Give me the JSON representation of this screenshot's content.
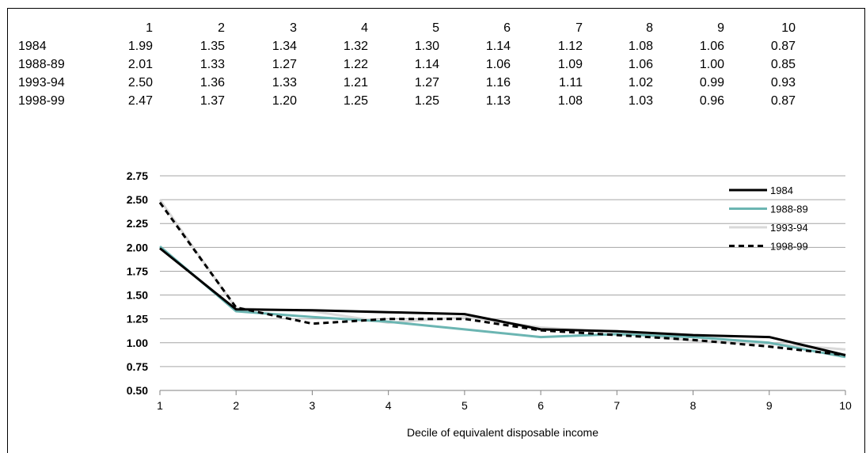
{
  "chart_data": {
    "type": "line",
    "x": [
      1,
      2,
      3,
      4,
      5,
      6,
      7,
      8,
      9,
      10
    ],
    "xlabel": "Decile of equivalent disposable income",
    "ylim": [
      0.5,
      2.75
    ],
    "yticks": [
      "0.50",
      "0.75",
      "1.00",
      "1.25",
      "1.50",
      "1.75",
      "2.00",
      "2.25",
      "2.50",
      "2.75"
    ],
    "grid": "horizontal",
    "legend": "top-right",
    "series": [
      {
        "name": "1984",
        "color": "#000000",
        "dash": "solid",
        "values": [
          1.99,
          1.35,
          1.34,
          1.32,
          1.3,
          1.14,
          1.12,
          1.08,
          1.06,
          0.87
        ],
        "labels": [
          "1.99",
          "1.35",
          "1.34",
          "1.32",
          "1.30",
          "1.14",
          "1.12",
          "1.08",
          "1.06",
          "0.87"
        ]
      },
      {
        "name": "1988-89",
        "color": "#6bb5b2",
        "dash": "solid",
        "values": [
          2.01,
          1.33,
          1.27,
          1.22,
          1.14,
          1.06,
          1.09,
          1.06,
          1.0,
          0.85
        ],
        "labels": [
          "2.01",
          "1.33",
          "1.27",
          "1.22",
          "1.14",
          "1.06",
          "1.09",
          "1.06",
          "1.00",
          "0.85"
        ]
      },
      {
        "name": "1993-94",
        "color": "#d9d9d9",
        "dash": "solid",
        "values": [
          2.5,
          1.36,
          1.33,
          1.21,
          1.27,
          1.16,
          1.11,
          1.02,
          0.99,
          0.93
        ],
        "labels": [
          "2.50",
          "1.36",
          "1.33",
          "1.21",
          "1.27",
          "1.16",
          "1.11",
          "1.02",
          "0.99",
          "0.93"
        ]
      },
      {
        "name": "1998-99",
        "color": "#000000",
        "dash": "dashed",
        "values": [
          2.47,
          1.37,
          1.2,
          1.25,
          1.25,
          1.13,
          1.08,
          1.03,
          0.96,
          0.87
        ],
        "labels": [
          "2.47",
          "1.37",
          "1.20",
          "1.25",
          "1.25",
          "1.13",
          "1.08",
          "1.03",
          "0.96",
          "0.87"
        ]
      }
    ]
  }
}
